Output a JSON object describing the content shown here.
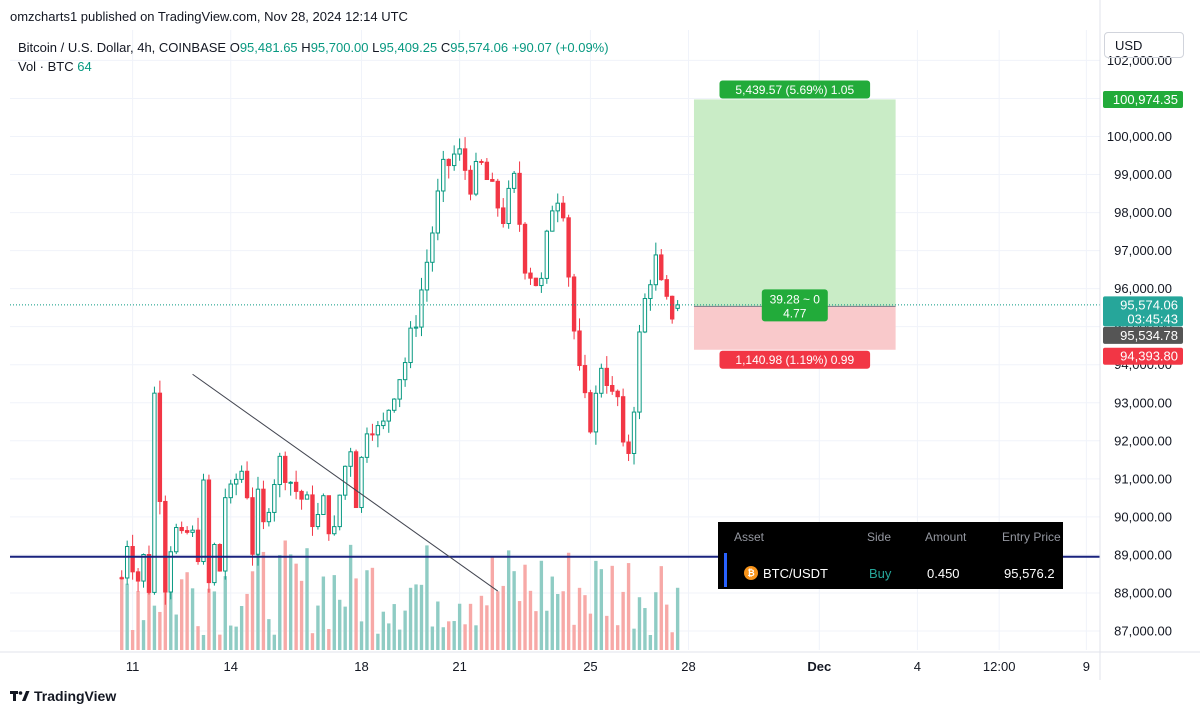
{
  "attribution": "omzcharts1 published on TradingView.com, Nov 28, 2024 12:14 UTC",
  "legend": {
    "symbol": "Bitcoin / U.S. Dollar, 4h, COINBASE",
    "o_label": "O",
    "o": "95,481.65",
    "h_label": "H",
    "h": "95,700.00",
    "l_label": "L",
    "l": "95,409.25",
    "c_label": "C",
    "c": "95,574.06",
    "change": "+90.07 (+0.09%)",
    "vol_label": "Vol · BTC",
    "vol": "64"
  },
  "currency": "USD",
  "footer_brand": "TradingView",
  "colors": {
    "up": "#089981",
    "down": "#f23645",
    "up_vol": "#8fccc4",
    "down_vol": "#f7a9a7",
    "target": "#c9ecc6",
    "stop": "#f9c9cb",
    "level": "#1a237e",
    "accent_green": "#22ab3a"
  },
  "chart_data": {
    "type": "candlestick",
    "title": "Bitcoin / U.S. Dollar, 4h, COINBASE",
    "ylim": [
      86500,
      102800
    ],
    "y_ticks": [
      "102,000.00",
      "101,000.00",
      "100,000.00",
      "99,000.00",
      "98,000.00",
      "97,000.00",
      "96,000.00",
      "95,000.00",
      "94,000.00",
      "93,000.00",
      "92,000.00",
      "91,000.00",
      "90,000.00",
      "89,000.00",
      "88,000.00",
      "87,000.00"
    ],
    "y_tick_values": [
      102000,
      101000,
      100000,
      99000,
      98000,
      97000,
      96000,
      95000,
      94000,
      93000,
      92000,
      91000,
      90000,
      89000,
      88000,
      87000
    ],
    "x_ticks": [
      "11",
      "14",
      "18",
      "21",
      "25",
      "28",
      "Dec",
      "4",
      "12:00",
      "9"
    ],
    "x_tick_bars": [
      22,
      40,
      64,
      82,
      106,
      124,
      148,
      166,
      181,
      197
    ],
    "bars_total": 200,
    "candle_ranges": [
      {
        "b": 20,
        "e": 24,
        "p": [
          88400,
          89800,
          88200,
          89500,
          88000,
          88900
        ]
      },
      {
        "b": 25,
        "e": 35,
        "p": [
          88200,
          93400,
          91500,
          87600,
          89900,
          88400,
          90800,
          88300,
          90100,
          89300,
          89100,
          90700
        ]
      },
      {
        "b": 36,
        "e": 45,
        "p": [
          88200,
          89300,
          88100,
          90400,
          90900,
          90100,
          91700,
          91000,
          90600,
          89000,
          90400
        ]
      },
      {
        "b": 46,
        "e": 62,
        "p": [
          89700,
          90900,
          91500,
          91000,
          90600,
          90300,
          89800,
          90400,
          89300,
          91000,
          91900
        ]
      },
      {
        "b": 63,
        "e": 81,
        "p": [
          90500,
          92700,
          92100,
          93300,
          94100,
          95400,
          97100,
          99000,
          99500
        ]
      },
      {
        "b": 82,
        "e": 96,
        "p": [
          99500,
          98800,
          99200,
          98500,
          97900,
          98800,
          96700,
          96200
        ]
      },
      {
        "b": 97,
        "e": 110,
        "p": [
          96100,
          98200,
          98700,
          95400,
          93200,
          92400,
          94200,
          93100
        ]
      },
      {
        "b": 111,
        "e": 122,
        "p": [
          93100,
          91100,
          92600,
          94900,
          96100,
          96800,
          95800,
          95300,
          95600
        ]
      }
    ],
    "trendline": {
      "from": {
        "bar": 33,
        "y": 93750
      },
      "to": {
        "bar": 89,
        "y": 88050
      }
    },
    "horizontal_level": 88950,
    "position": {
      "side": "Buy",
      "entry": 95534.78,
      "target": 100974.35,
      "stop": 94393.8,
      "start_bar": 125,
      "end_bar": 162,
      "target_label": "5,439.57 (5.69%) 1.05",
      "stop_label": "1,140.98 (1.19%) 0.99",
      "center_label_1": "39.28 ~ 0",
      "center_label_2": "4.77"
    },
    "last_price": 95574.06,
    "price_tags": [
      {
        "value": 100974.35,
        "text": "100,974.35",
        "bg": "#22ab3a"
      },
      {
        "value": 95574.06,
        "text": "95,574.06",
        "sub": "03:45:43",
        "bg": "#26a69a"
      },
      {
        "value": 95534.78,
        "text": "95,534.78",
        "bg": "#555555"
      },
      {
        "value": 94393.8,
        "text": "94,393.80",
        "bg": "#f23645"
      }
    ]
  },
  "position_panel": {
    "headers": {
      "asset": "Asset",
      "side": "Side",
      "amount": "Amount",
      "entry_price": "Entry Price"
    },
    "row": {
      "asset": "BTC/USDT",
      "side": "Buy",
      "amount": "0.450",
      "entry_price": "95,576.2"
    }
  }
}
